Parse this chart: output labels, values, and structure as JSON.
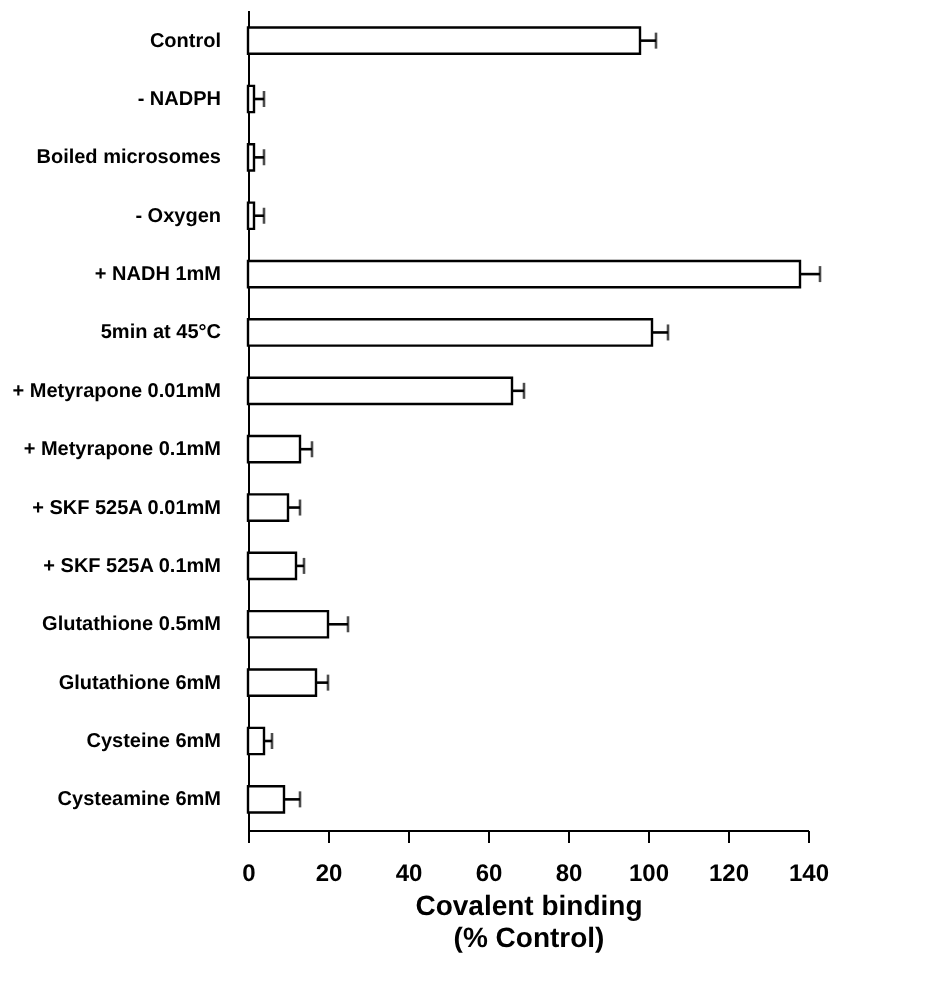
{
  "chart_data": {
    "type": "bar",
    "orientation": "horizontal",
    "categories": [
      "Control",
      "- NADPH",
      "Boiled microsomes",
      "- Oxygen",
      "+ NADH 1mM",
      "5min at 45°C",
      "+ Metyrapone 0.01mM",
      "+ Metyrapone 0.1mM",
      "+ SKF 525A 0.01mM",
      "+ SKF 525A 0.1mM",
      "Glutathione 0.5mM",
      "Glutathione 6mM",
      "Cysteine  6mM",
      "Cysteamine 6mM"
    ],
    "values": [
      98,
      1.5,
      1.5,
      1.5,
      138,
      101,
      66,
      13,
      10,
      12,
      20,
      17,
      4,
      9
    ],
    "errors": [
      [
        98,
        102
      ],
      [
        1.5,
        4
      ],
      [
        1.5,
        4
      ],
      [
        1.5,
        4
      ],
      [
        138,
        143
      ],
      [
        101,
        105
      ],
      [
        66,
        69
      ],
      [
        13,
        16
      ],
      [
        10,
        13
      ],
      [
        12,
        14
      ],
      [
        20,
        25
      ],
      [
        17,
        20
      ],
      [
        4,
        6
      ],
      [
        9,
        13
      ]
    ],
    "color": "#ffffff",
    "xlim": [
      0,
      140
    ],
    "xticks": [
      0,
      20,
      40,
      60,
      80,
      100,
      120,
      140
    ],
    "xlabel": "Covalent binding\n(% Control)",
    "grid": false
  }
}
